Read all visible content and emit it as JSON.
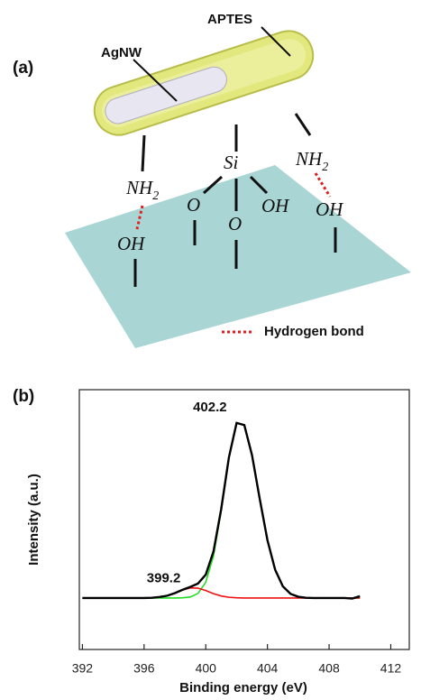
{
  "diagram": {
    "panel_label": "(a)",
    "rod_label": "APTES",
    "wire_label": "AgNW",
    "atoms": [
      {
        "label": "NH",
        "subscript": "2"
      },
      {
        "label": "OH"
      },
      {
        "label": "Si"
      },
      {
        "label": "O"
      },
      {
        "label": "O"
      },
      {
        "label": "OH"
      },
      {
        "label": "NH",
        "subscript": "2"
      },
      {
        "label": "OH"
      }
    ],
    "legend": "Hydrogen bond"
  },
  "chart_data": {
    "type": "line",
    "panel_label": "(b)",
    "x_label": "Binding energy (eV)",
    "y_label": "Intensity (a.u.)",
    "x": [
      392,
      392.5,
      393,
      393.5,
      394,
      394.5,
      395,
      395.5,
      396,
      396.5,
      397,
      397.5,
      398,
      398.5,
      399,
      399.5,
      400,
      400.5,
      401,
      401.5,
      402,
      402.5,
      403,
      403.5,
      404,
      404.5,
      405,
      405.5,
      406,
      406.5,
      407,
      407.5,
      408,
      408.5,
      409,
      409.5,
      410
    ],
    "series": [
      {
        "color": "#000000",
        "values": [
          0.198,
          0.198,
          0.198,
          0.198,
          0.198,
          0.198,
          0.198,
          0.198,
          0.198,
          0.199,
          0.202,
          0.207,
          0.217,
          0.23,
          0.241,
          0.254,
          0.288,
          0.377,
          0.54,
          0.739,
          0.872,
          0.864,
          0.748,
          0.58,
          0.421,
          0.307,
          0.243,
          0.214,
          0.203,
          0.199,
          0.198,
          0.198,
          0.198,
          0.198,
          0.198,
          0.196,
          0.205
        ]
      },
      {
        "color": "#22dd22",
        "values": [
          0.198,
          0.198,
          0.198,
          0.198,
          0.198,
          0.198,
          0.198,
          0.198,
          0.198,
          0.198,
          0.198,
          0.198,
          0.198,
          0.199,
          0.202,
          0.216,
          0.259,
          0.36,
          0.532,
          0.736,
          0.871,
          0.864,
          0.748,
          0.58,
          0.421,
          0.307,
          0.243,
          0.214,
          0.203,
          0.199,
          0.198,
          0.198,
          0.198,
          0.198,
          0.198,
          0.198,
          0.198
        ]
      },
      {
        "color": "#ee1111",
        "values": [
          0.198,
          0.198,
          0.198,
          0.198,
          0.198,
          0.198,
          0.198,
          0.198,
          0.198,
          0.199,
          0.202,
          0.207,
          0.217,
          0.229,
          0.237,
          0.236,
          0.227,
          0.215,
          0.206,
          0.201,
          0.199,
          0.198,
          0.198,
          0.198,
          0.198,
          0.198,
          0.198,
          0.198,
          0.198,
          0.198,
          0.198,
          0.198,
          0.198,
          0.198,
          0.198,
          0.198,
          0.198
        ]
      }
    ],
    "annotations": [
      "402.2",
      "399.2"
    ],
    "xlim": [
      391.8,
      413.2
    ],
    "xticks": [
      392,
      396,
      400,
      404,
      408,
      412
    ],
    "ylim": [
      0,
      1
    ]
  }
}
